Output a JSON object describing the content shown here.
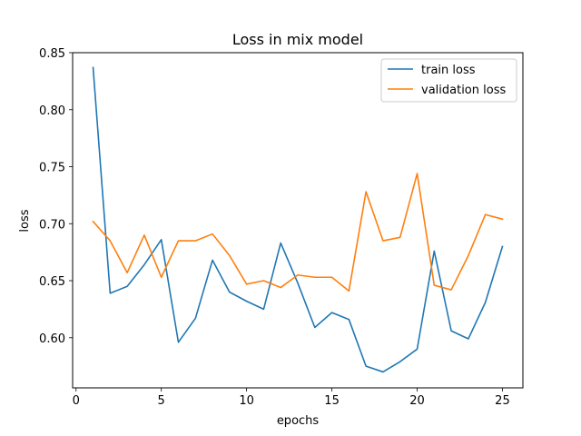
{
  "chart_data": {
    "type": "line",
    "title": "Loss in mix model",
    "xlabel": "epochs",
    "ylabel": "loss",
    "xlim": [
      -0.2,
      26.2
    ],
    "ylim": [
      0.556,
      0.85
    ],
    "xticks": [
      0,
      5,
      10,
      15,
      20,
      25
    ],
    "yticks": [
      0.6,
      0.65,
      0.7,
      0.75,
      0.8,
      0.85
    ],
    "xtick_labels": [
      "0",
      "5",
      "10",
      "15",
      "20",
      "25"
    ],
    "ytick_labels": [
      "0.60",
      "0.65",
      "0.70",
      "0.75",
      "0.80",
      "0.85"
    ],
    "grid": false,
    "legend_position": "top-right",
    "x": [
      1,
      2,
      3,
      4,
      5,
      6,
      7,
      8,
      9,
      10,
      11,
      12,
      13,
      14,
      15,
      16,
      17,
      18,
      19,
      20,
      21,
      22,
      23,
      24,
      25
    ],
    "series": [
      {
        "name": "train loss",
        "color": "#1f77b4",
        "values": [
          0.837,
          0.639,
          0.645,
          0.664,
          0.686,
          0.596,
          0.617,
          0.668,
          0.64,
          0.632,
          0.625,
          0.683,
          0.648,
          0.609,
          0.622,
          0.616,
          0.575,
          0.57,
          0.579,
          0.59,
          0.676,
          0.606,
          0.599,
          0.631,
          0.68
        ]
      },
      {
        "name": "validation loss",
        "color": "#ff7f0e",
        "values": [
          0.702,
          0.685,
          0.657,
          0.69,
          0.653,
          0.685,
          0.685,
          0.691,
          0.672,
          0.647,
          0.65,
          0.644,
          0.655,
          0.653,
          0.653,
          0.641,
          0.728,
          0.685,
          0.688,
          0.744,
          0.646,
          0.642,
          0.672,
          0.708,
          0.704
        ]
      }
    ]
  }
}
